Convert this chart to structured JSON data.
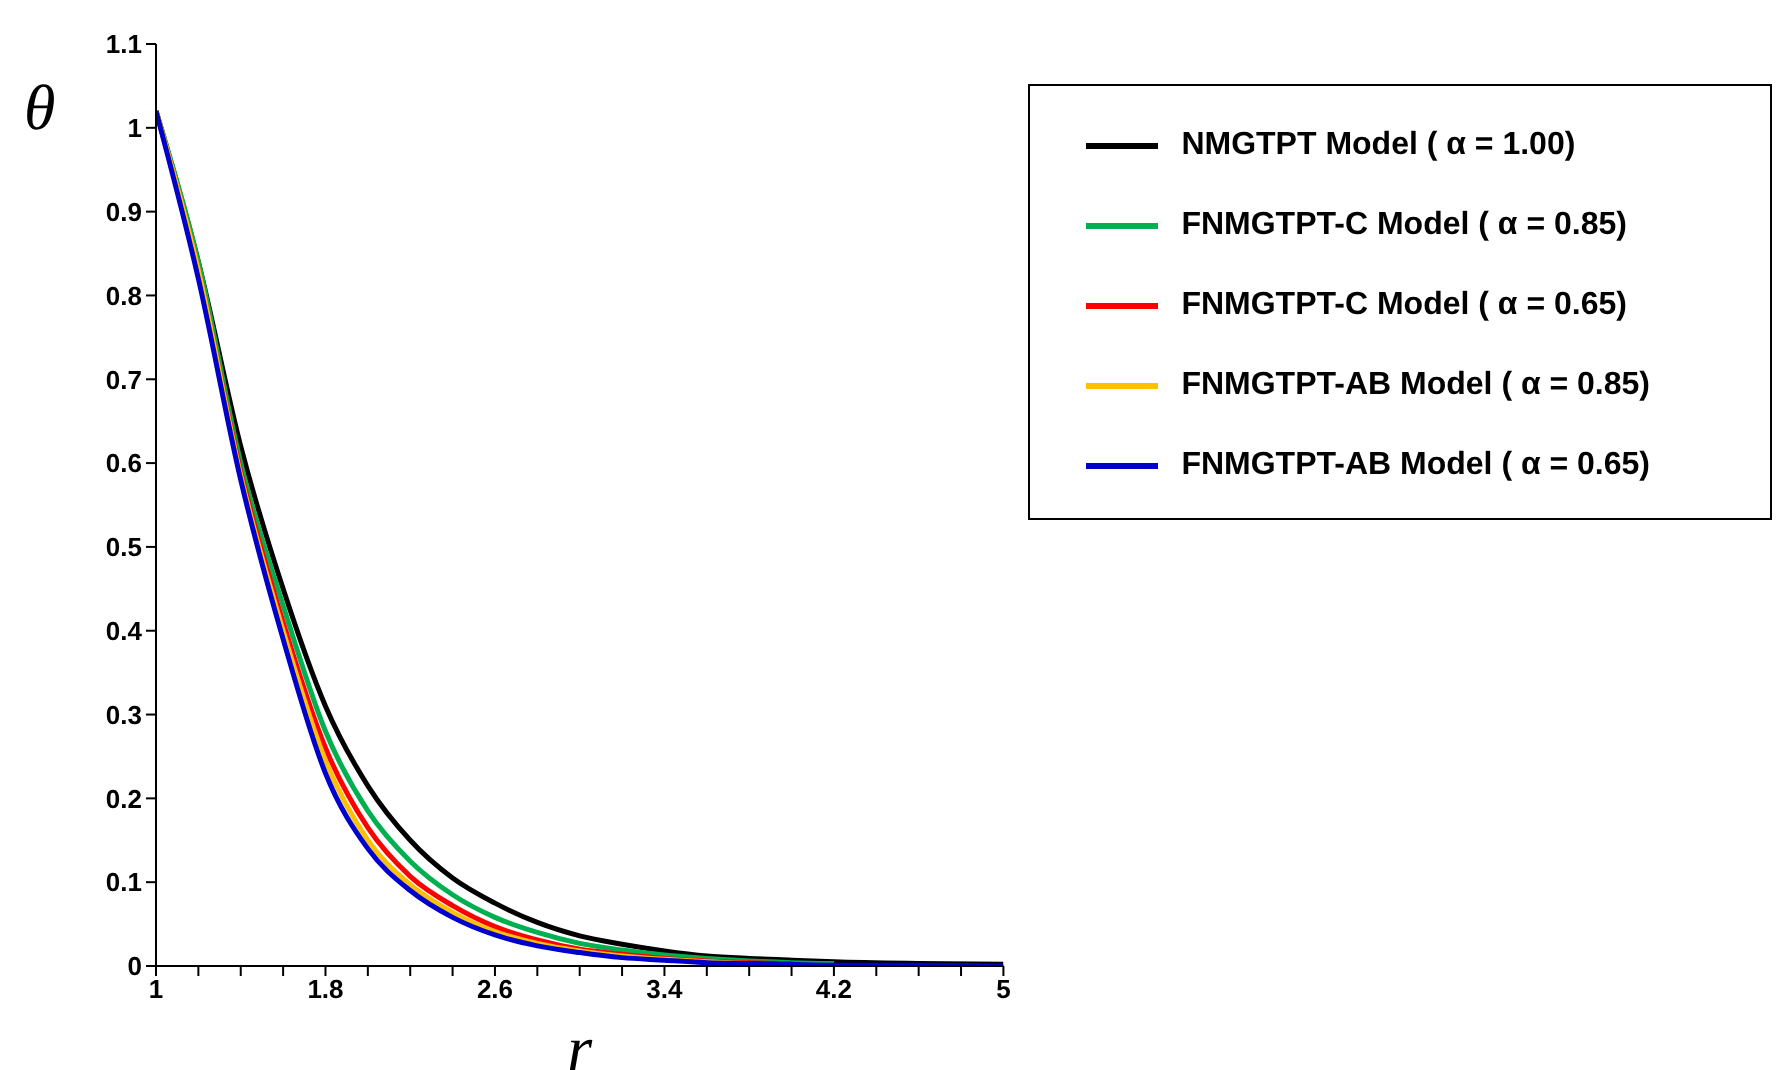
{
  "chart_data": {
    "type": "line",
    "xlabel": "r",
    "ylabel": "θ",
    "x": [
      1,
      1.2,
      1.4,
      1.6,
      1.8,
      2.0,
      2.2,
      2.4,
      2.6,
      2.8,
      3.0,
      3.2,
      3.4,
      3.6,
      3.8,
      4.0,
      4.2,
      4.6,
      5
    ],
    "series": [
      {
        "name": "NMGTPT Model ( α = 1.00)",
        "color": "#000000",
        "values": [
          1.02,
          0.84,
          0.62,
          0.45,
          0.31,
          0.215,
          0.15,
          0.105,
          0.075,
          0.052,
          0.036,
          0.026,
          0.018,
          0.012,
          0.009,
          0.007,
          0.005,
          0.003,
          0.002
        ]
      },
      {
        "name": "FNMGTPT-C Model ( α = 0.85)",
        "color": "#00b050",
        "values": [
          1.02,
          0.84,
          0.6,
          0.43,
          0.28,
          0.185,
          0.125,
          0.085,
          0.058,
          0.04,
          0.027,
          0.019,
          0.013,
          0.009,
          0.006,
          0.004,
          0.003,
          null,
          null
        ]
      },
      {
        "name": "FNMGTPT-C Model ( α = 0.65)",
        "color": "#ff0000",
        "values": [
          1.02,
          0.83,
          0.59,
          0.41,
          0.26,
          0.165,
          0.107,
          0.072,
          0.047,
          0.031,
          0.02,
          0.014,
          0.009,
          0.006,
          0.004,
          0.003,
          null,
          null,
          null
        ]
      },
      {
        "name": "FNMGTPT-AB Model ( α = 0.85)",
        "color": "#ffc000",
        "values": [
          1.02,
          0.83,
          0.585,
          0.4,
          0.245,
          0.15,
          0.097,
          0.064,
          0.041,
          0.027,
          0.018,
          0.012,
          0.008,
          0.005,
          0.003,
          null,
          null,
          null,
          null
        ]
      },
      {
        "name": "FNMGTPT-AB Model ( α = 0.65)",
        "color": "#0000cc",
        "values": [
          1.02,
          0.82,
          0.58,
          0.39,
          0.23,
          0.14,
          0.09,
          0.058,
          0.037,
          0.024,
          0.016,
          0.01,
          0.007,
          0.004,
          0.003,
          0.002,
          0.001,
          0.001,
          0
        ]
      }
    ],
    "xlim": [
      1,
      5
    ],
    "xticks": [
      1,
      {
        "value": 1.2,
        "label": null
      },
      {
        "value": 1.4,
        "label": null
      },
      {
        "value": 1.6,
        "label": null
      },
      1.8,
      {
        "value": 2.0,
        "label": null
      },
      {
        "value": 2.2,
        "label": null
      },
      {
        "value": 2.4,
        "label": null
      },
      2.6,
      {
        "value": 2.8,
        "label": null
      },
      {
        "value": 3.0,
        "label": null
      },
      {
        "value": 3.2,
        "label": null
      },
      3.4,
      {
        "value": 3.6,
        "label": null
      },
      {
        "value": 3.8,
        "label": null
      },
      {
        "value": 4.0,
        "label": null
      },
      4.2,
      {
        "value": 4.4,
        "label": null
      },
      {
        "value": 4.6,
        "label": null
      },
      {
        "value": 4.8,
        "label": null
      },
      5
    ],
    "ylim": [
      0,
      1.1
    ],
    "yticks": [
      0,
      0.1,
      0.2,
      0.3,
      0.4,
      0.5,
      0.6,
      0.7,
      0.8,
      0.9,
      1,
      1.1
    ],
    "grid": false,
    "legend": "top right",
    "marker": "none",
    "line_style": "solid"
  }
}
